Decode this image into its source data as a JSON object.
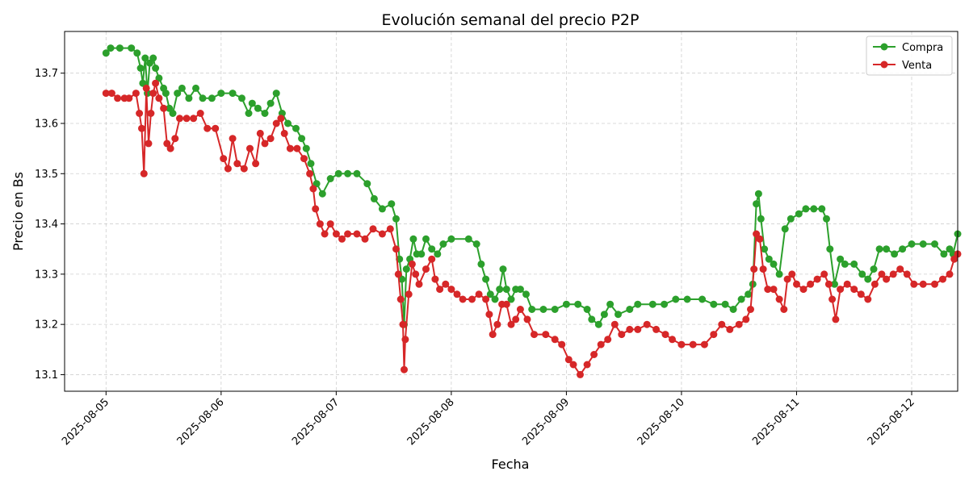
{
  "chart_data": {
    "type": "line",
    "title": "Evolución semanal del precio P2P",
    "xlabel": "Fecha",
    "ylabel": "Precio en Bs",
    "x_start": "2025-08-05",
    "xlim_days": [
      -0.36,
      7.4
    ],
    "ylim": [
      13.067,
      13.783
    ],
    "x_ticks": [
      "2025-08-05",
      "2025-08-06",
      "2025-08-07",
      "2025-08-08",
      "2025-08-09",
      "2025-08-10",
      "2025-08-11",
      "2025-08-12"
    ],
    "y_ticks": [
      13.1,
      13.2,
      13.3,
      13.4,
      13.5,
      13.6,
      13.7
    ],
    "grid": true,
    "legend_position": "upper right",
    "series": [
      {
        "name": "Compra",
        "color": "#2ca02c",
        "points": [
          [
            0.0,
            13.74
          ],
          [
            0.04,
            13.75
          ],
          [
            0.12,
            13.75
          ],
          [
            0.22,
            13.75
          ],
          [
            0.27,
            13.74
          ],
          [
            0.3,
            13.71
          ],
          [
            0.32,
            13.68
          ],
          [
            0.34,
            13.73
          ],
          [
            0.36,
            13.66
          ],
          [
            0.38,
            13.72
          ],
          [
            0.41,
            13.73
          ],
          [
            0.43,
            13.71
          ],
          [
            0.46,
            13.69
          ],
          [
            0.5,
            13.67
          ],
          [
            0.52,
            13.66
          ],
          [
            0.55,
            13.63
          ],
          [
            0.58,
            13.62
          ],
          [
            0.62,
            13.66
          ],
          [
            0.66,
            13.67
          ],
          [
            0.72,
            13.65
          ],
          [
            0.78,
            13.67
          ],
          [
            0.84,
            13.65
          ],
          [
            0.92,
            13.65
          ],
          [
            1.0,
            13.66
          ],
          [
            1.1,
            13.66
          ],
          [
            1.18,
            13.65
          ],
          [
            1.24,
            13.62
          ],
          [
            1.27,
            13.64
          ],
          [
            1.32,
            13.63
          ],
          [
            1.38,
            13.62
          ],
          [
            1.43,
            13.64
          ],
          [
            1.48,
            13.66
          ],
          [
            1.53,
            13.62
          ],
          [
            1.58,
            13.6
          ],
          [
            1.65,
            13.59
          ],
          [
            1.7,
            13.57
          ],
          [
            1.74,
            13.55
          ],
          [
            1.78,
            13.52
          ],
          [
            1.83,
            13.48
          ],
          [
            1.88,
            13.46
          ],
          [
            1.95,
            13.49
          ],
          [
            2.02,
            13.5
          ],
          [
            2.1,
            13.5
          ],
          [
            2.18,
            13.5
          ],
          [
            2.27,
            13.48
          ],
          [
            2.33,
            13.45
          ],
          [
            2.4,
            13.43
          ],
          [
            2.48,
            13.44
          ],
          [
            2.52,
            13.41
          ],
          [
            2.55,
            13.33
          ],
          [
            2.57,
            13.29
          ],
          [
            2.59,
            13.2
          ],
          [
            2.61,
            13.31
          ],
          [
            2.64,
            13.33
          ],
          [
            2.67,
            13.37
          ],
          [
            2.7,
            13.34
          ],
          [
            2.74,
            13.34
          ],
          [
            2.78,
            13.37
          ],
          [
            2.83,
            13.35
          ],
          [
            2.88,
            13.34
          ],
          [
            2.93,
            13.36
          ],
          [
            3.0,
            13.37
          ],
          [
            3.15,
            13.37
          ],
          [
            3.22,
            13.36
          ],
          [
            3.26,
            13.32
          ],
          [
            3.3,
            13.29
          ],
          [
            3.34,
            13.26
          ],
          [
            3.38,
            13.25
          ],
          [
            3.42,
            13.27
          ],
          [
            3.45,
            13.31
          ],
          [
            3.48,
            13.27
          ],
          [
            3.52,
            13.25
          ],
          [
            3.56,
            13.27
          ],
          [
            3.6,
            13.27
          ],
          [
            3.65,
            13.26
          ],
          [
            3.7,
            13.23
          ],
          [
            3.8,
            13.23
          ],
          [
            3.9,
            13.23
          ],
          [
            4.0,
            13.24
          ],
          [
            4.1,
            13.24
          ],
          [
            4.18,
            13.23
          ],
          [
            4.22,
            13.21
          ],
          [
            4.28,
            13.2
          ],
          [
            4.33,
            13.22
          ],
          [
            4.38,
            13.24
          ],
          [
            4.45,
            13.22
          ],
          [
            4.55,
            13.23
          ],
          [
            4.62,
            13.24
          ],
          [
            4.75,
            13.24
          ],
          [
            4.85,
            13.24
          ],
          [
            4.95,
            13.25
          ],
          [
            5.05,
            13.25
          ],
          [
            5.18,
            13.25
          ],
          [
            5.28,
            13.24
          ],
          [
            5.38,
            13.24
          ],
          [
            5.45,
            13.23
          ],
          [
            5.52,
            13.25
          ],
          [
            5.58,
            13.26
          ],
          [
            5.62,
            13.28
          ],
          [
            5.65,
            13.44
          ],
          [
            5.67,
            13.46
          ],
          [
            5.69,
            13.41
          ],
          [
            5.72,
            13.35
          ],
          [
            5.76,
            13.33
          ],
          [
            5.8,
            13.32
          ],
          [
            5.85,
            13.3
          ],
          [
            5.9,
            13.39
          ],
          [
            5.95,
            13.41
          ],
          [
            6.02,
            13.42
          ],
          [
            6.08,
            13.43
          ],
          [
            6.15,
            13.43
          ],
          [
            6.22,
            13.43
          ],
          [
            6.26,
            13.41
          ],
          [
            6.29,
            13.35
          ],
          [
            6.33,
            13.28
          ],
          [
            6.38,
            13.33
          ],
          [
            6.42,
            13.32
          ],
          [
            6.5,
            13.32
          ],
          [
            6.57,
            13.3
          ],
          [
            6.62,
            13.29
          ],
          [
            6.67,
            13.31
          ],
          [
            6.72,
            13.35
          ],
          [
            6.78,
            13.35
          ],
          [
            6.85,
            13.34
          ],
          [
            6.92,
            13.35
          ],
          [
            7.0,
            13.36
          ],
          [
            7.1,
            13.36
          ],
          [
            7.2,
            13.36
          ],
          [
            7.28,
            13.34
          ],
          [
            7.33,
            13.35
          ],
          [
            7.36,
            13.34
          ],
          [
            7.4,
            13.38
          ]
        ]
      },
      {
        "name": "Venta",
        "color": "#d62728",
        "points": [
          [
            0.0,
            13.66
          ],
          [
            0.05,
            13.66
          ],
          [
            0.1,
            13.65
          ],
          [
            0.16,
            13.65
          ],
          [
            0.2,
            13.65
          ],
          [
            0.26,
            13.66
          ],
          [
            0.29,
            13.62
          ],
          [
            0.31,
            13.59
          ],
          [
            0.33,
            13.5
          ],
          [
            0.35,
            13.67
          ],
          [
            0.37,
            13.56
          ],
          [
            0.39,
            13.62
          ],
          [
            0.41,
            13.66
          ],
          [
            0.43,
            13.68
          ],
          [
            0.46,
            13.65
          ],
          [
            0.5,
            13.63
          ],
          [
            0.53,
            13.56
          ],
          [
            0.56,
            13.55
          ],
          [
            0.6,
            13.57
          ],
          [
            0.64,
            13.61
          ],
          [
            0.7,
            13.61
          ],
          [
            0.76,
            13.61
          ],
          [
            0.82,
            13.62
          ],
          [
            0.88,
            13.59
          ],
          [
            0.95,
            13.59
          ],
          [
            1.02,
            13.53
          ],
          [
            1.06,
            13.51
          ],
          [
            1.1,
            13.57
          ],
          [
            1.14,
            13.52
          ],
          [
            1.2,
            13.51
          ],
          [
            1.25,
            13.55
          ],
          [
            1.3,
            13.52
          ],
          [
            1.34,
            13.58
          ],
          [
            1.38,
            13.56
          ],
          [
            1.43,
            13.57
          ],
          [
            1.48,
            13.6
          ],
          [
            1.52,
            13.61
          ],
          [
            1.55,
            13.58
          ],
          [
            1.6,
            13.55
          ],
          [
            1.66,
            13.55
          ],
          [
            1.72,
            13.53
          ],
          [
            1.77,
            13.5
          ],
          [
            1.8,
            13.47
          ],
          [
            1.82,
            13.43
          ],
          [
            1.86,
            13.4
          ],
          [
            1.9,
            13.38
          ],
          [
            1.95,
            13.4
          ],
          [
            2.0,
            13.38
          ],
          [
            2.05,
            13.37
          ],
          [
            2.1,
            13.38
          ],
          [
            2.18,
            13.38
          ],
          [
            2.25,
            13.37
          ],
          [
            2.32,
            13.39
          ],
          [
            2.4,
            13.38
          ],
          [
            2.47,
            13.39
          ],
          [
            2.52,
            13.35
          ],
          [
            2.54,
            13.3
          ],
          [
            2.56,
            13.25
          ],
          [
            2.58,
            13.2
          ],
          [
            2.59,
            13.11
          ],
          [
            2.6,
            13.17
          ],
          [
            2.63,
            13.26
          ],
          [
            2.66,
            13.32
          ],
          [
            2.69,
            13.3
          ],
          [
            2.72,
            13.28
          ],
          [
            2.78,
            13.31
          ],
          [
            2.83,
            13.33
          ],
          [
            2.86,
            13.29
          ],
          [
            2.9,
            13.27
          ],
          [
            2.95,
            13.28
          ],
          [
            3.0,
            13.27
          ],
          [
            3.05,
            13.26
          ],
          [
            3.1,
            13.25
          ],
          [
            3.18,
            13.25
          ],
          [
            3.24,
            13.26
          ],
          [
            3.3,
            13.25
          ],
          [
            3.33,
            13.22
          ],
          [
            3.36,
            13.18
          ],
          [
            3.4,
            13.2
          ],
          [
            3.44,
            13.24
          ],
          [
            3.48,
            13.24
          ],
          [
            3.52,
            13.2
          ],
          [
            3.56,
            13.21
          ],
          [
            3.6,
            13.23
          ],
          [
            3.66,
            13.21
          ],
          [
            3.72,
            13.18
          ],
          [
            3.82,
            13.18
          ],
          [
            3.9,
            13.17
          ],
          [
            3.96,
            13.16
          ],
          [
            4.02,
            13.13
          ],
          [
            4.06,
            13.12
          ],
          [
            4.12,
            13.1
          ],
          [
            4.18,
            13.12
          ],
          [
            4.24,
            13.14
          ],
          [
            4.3,
            13.16
          ],
          [
            4.36,
            13.17
          ],
          [
            4.42,
            13.2
          ],
          [
            4.48,
            13.18
          ],
          [
            4.55,
            13.19
          ],
          [
            4.62,
            13.19
          ],
          [
            4.7,
            13.2
          ],
          [
            4.78,
            13.19
          ],
          [
            4.86,
            13.18
          ],
          [
            4.92,
            13.17
          ],
          [
            5.0,
            13.16
          ],
          [
            5.1,
            13.16
          ],
          [
            5.2,
            13.16
          ],
          [
            5.28,
            13.18
          ],
          [
            5.35,
            13.2
          ],
          [
            5.42,
            13.19
          ],
          [
            5.5,
            13.2
          ],
          [
            5.56,
            13.21
          ],
          [
            5.6,
            13.23
          ],
          [
            5.63,
            13.31
          ],
          [
            5.65,
            13.38
          ],
          [
            5.68,
            13.37
          ],
          [
            5.71,
            13.31
          ],
          [
            5.75,
            13.27
          ],
          [
            5.8,
            13.27
          ],
          [
            5.85,
            13.25
          ],
          [
            5.89,
            13.23
          ],
          [
            5.92,
            13.29
          ],
          [
            5.96,
            13.3
          ],
          [
            6.0,
            13.28
          ],
          [
            6.06,
            13.27
          ],
          [
            6.12,
            13.28
          ],
          [
            6.18,
            13.29
          ],
          [
            6.24,
            13.3
          ],
          [
            6.28,
            13.28
          ],
          [
            6.31,
            13.25
          ],
          [
            6.34,
            13.21
          ],
          [
            6.38,
            13.27
          ],
          [
            6.44,
            13.28
          ],
          [
            6.5,
            13.27
          ],
          [
            6.56,
            13.26
          ],
          [
            6.62,
            13.25
          ],
          [
            6.68,
            13.28
          ],
          [
            6.74,
            13.3
          ],
          [
            6.78,
            13.29
          ],
          [
            6.84,
            13.3
          ],
          [
            6.9,
            13.31
          ],
          [
            6.96,
            13.3
          ],
          [
            7.02,
            13.28
          ],
          [
            7.1,
            13.28
          ],
          [
            7.2,
            13.28
          ],
          [
            7.27,
            13.29
          ],
          [
            7.33,
            13.3
          ],
          [
            7.37,
            13.33
          ],
          [
            7.4,
            13.34
          ]
        ]
      }
    ]
  }
}
